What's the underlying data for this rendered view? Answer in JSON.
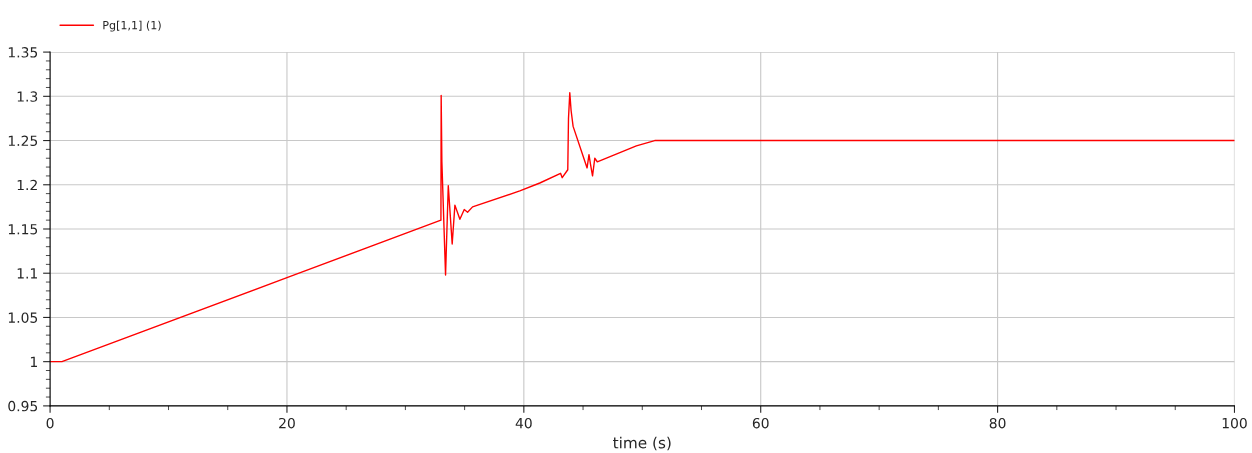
{
  "chart_data": {
    "type": "line",
    "xlabel": "time (s)",
    "series": [
      {
        "name": "Pg[1,1] (1)",
        "color": "#ff0000",
        "x": [
          0,
          1,
          20,
          33.0,
          33.02,
          33.08,
          33.39,
          33.62,
          33.95,
          34.18,
          34.6,
          34.97,
          35.25,
          35.67,
          39.66,
          41.35,
          43.1,
          43.24,
          43.71,
          43.77,
          43.88,
          43.99,
          44.16,
          45.34,
          45.5,
          45.63,
          45.8,
          45.99,
          46.2,
          49.5,
          51.05,
          100
        ],
        "values": [
          1.0,
          1.0,
          1.095,
          1.16,
          1.301,
          1.226,
          1.098,
          1.199,
          1.133,
          1.177,
          1.161,
          1.172,
          1.169,
          1.175,
          1.193,
          1.202,
          1.213,
          1.208,
          1.217,
          1.275,
          1.304,
          1.284,
          1.266,
          1.219,
          1.234,
          1.223,
          1.21,
          1.23,
          1.226,
          1.244,
          1.25,
          1.25
        ]
      }
    ],
    "xlim": [
      0,
      100
    ],
    "xticks": [
      0,
      20,
      40,
      60,
      80,
      100
    ],
    "ylim": [
      0.95,
      1.35
    ],
    "yticks": [
      0.95,
      1,
      1.05,
      1.1,
      1.15,
      1.2,
      1.25,
      1.3,
      1.35
    ],
    "grid": true,
    "legend": "top left",
    "marker": "none",
    "line_style": "solid"
  }
}
